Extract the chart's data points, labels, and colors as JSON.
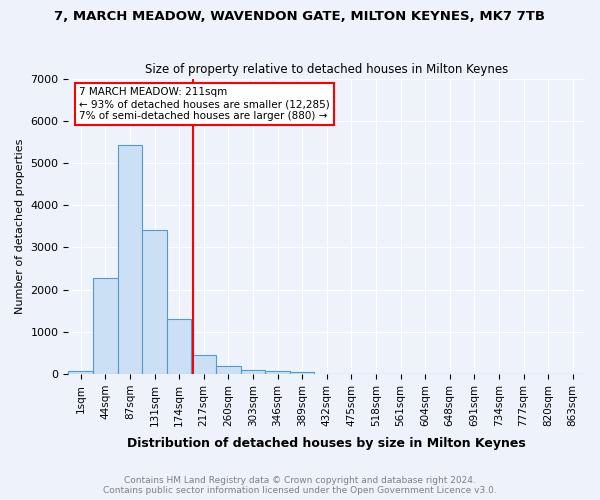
{
  "title": "7, MARCH MEADOW, WAVENDON GATE, MILTON KEYNES, MK7 7TB",
  "subtitle": "Size of property relative to detached houses in Milton Keynes",
  "xlabel": "Distribution of detached houses by size in Milton Keynes",
  "ylabel": "Number of detached properties",
  "bin_labels": [
    "1sqm",
    "44sqm",
    "87sqm",
    "131sqm",
    "174sqm",
    "217sqm",
    "260sqm",
    "303sqm",
    "346sqm",
    "389sqm",
    "432sqm",
    "475sqm",
    "518sqm",
    "561sqm",
    "604sqm",
    "648sqm",
    "691sqm",
    "734sqm",
    "777sqm",
    "820sqm",
    "863sqm"
  ],
  "bar_heights": [
    75,
    2280,
    5430,
    3420,
    1310,
    450,
    195,
    100,
    65,
    45,
    0,
    0,
    0,
    0,
    0,
    0,
    0,
    0,
    0,
    0,
    0
  ],
  "bar_color": "#cce0f5",
  "bar_edge_color": "#5599cc",
  "vline_x_bin": 4.55,
  "annotation_title": "7 MARCH MEADOW: 211sqm",
  "annotation_line1": "← 93% of detached houses are smaller (12,285)",
  "annotation_line2": "7% of semi-detached houses are larger (880) →",
  "annotation_box_color": "white",
  "annotation_box_edge": "red",
  "vline_color": "red",
  "ylim": [
    0,
    7000
  ],
  "footer1": "Contains HM Land Registry data © Crown copyright and database right 2024.",
  "footer2": "Contains public sector information licensed under the Open Government Licence v3.0.",
  "bg_color": "#eef2fb",
  "plot_bg_color": "#eef2fb"
}
